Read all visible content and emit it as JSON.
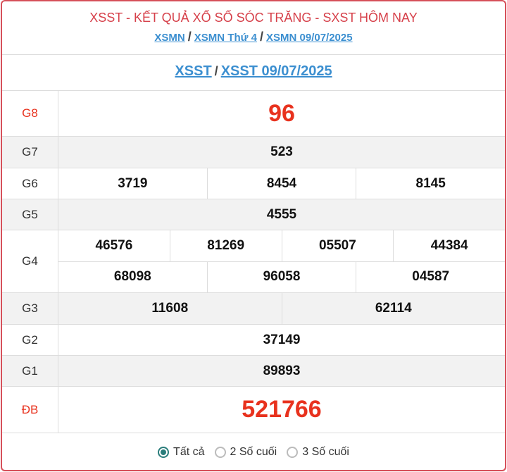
{
  "header": {
    "title": "XSST - KẾT QUẢ XỔ SỐ SÓC TRĂNG - SXST HÔM NAY",
    "breadcrumb": [
      "XSMN",
      "XSMN Thứ 4",
      "XSMN 09/07/2025"
    ],
    "separator": "/"
  },
  "subheader": {
    "links": [
      "XSST",
      "XSST 09/07/2025"
    ]
  },
  "prizes": [
    {
      "label": "G8",
      "lines": [
        [
          "96"
        ]
      ],
      "highlight": true
    },
    {
      "label": "G7",
      "lines": [
        [
          "523"
        ]
      ]
    },
    {
      "label": "G6",
      "lines": [
        [
          "3719",
          "8454",
          "8145"
        ]
      ]
    },
    {
      "label": "G5",
      "lines": [
        [
          "4555"
        ]
      ]
    },
    {
      "label": "G4",
      "lines": [
        [
          "46576",
          "81269",
          "05507",
          "44384"
        ],
        [
          "68098",
          "96058",
          "04587"
        ]
      ]
    },
    {
      "label": "G3",
      "lines": [
        [
          "11608",
          "62114"
        ]
      ]
    },
    {
      "label": "G2",
      "lines": [
        [
          "37149"
        ]
      ]
    },
    {
      "label": "G1",
      "lines": [
        [
          "89893"
        ]
      ]
    },
    {
      "label": "ĐB",
      "lines": [
        [
          "521766"
        ]
      ],
      "highlight": true
    }
  ],
  "filter": {
    "options": [
      "Tất cả",
      "2 Số cuối",
      "3 Số cuối"
    ],
    "selected": "Tất cả"
  },
  "colors": {
    "accent": "#d6505a",
    "highlight": "#e8321e",
    "link": "#3c8fd0",
    "radio": "#2a7d7b"
  }
}
